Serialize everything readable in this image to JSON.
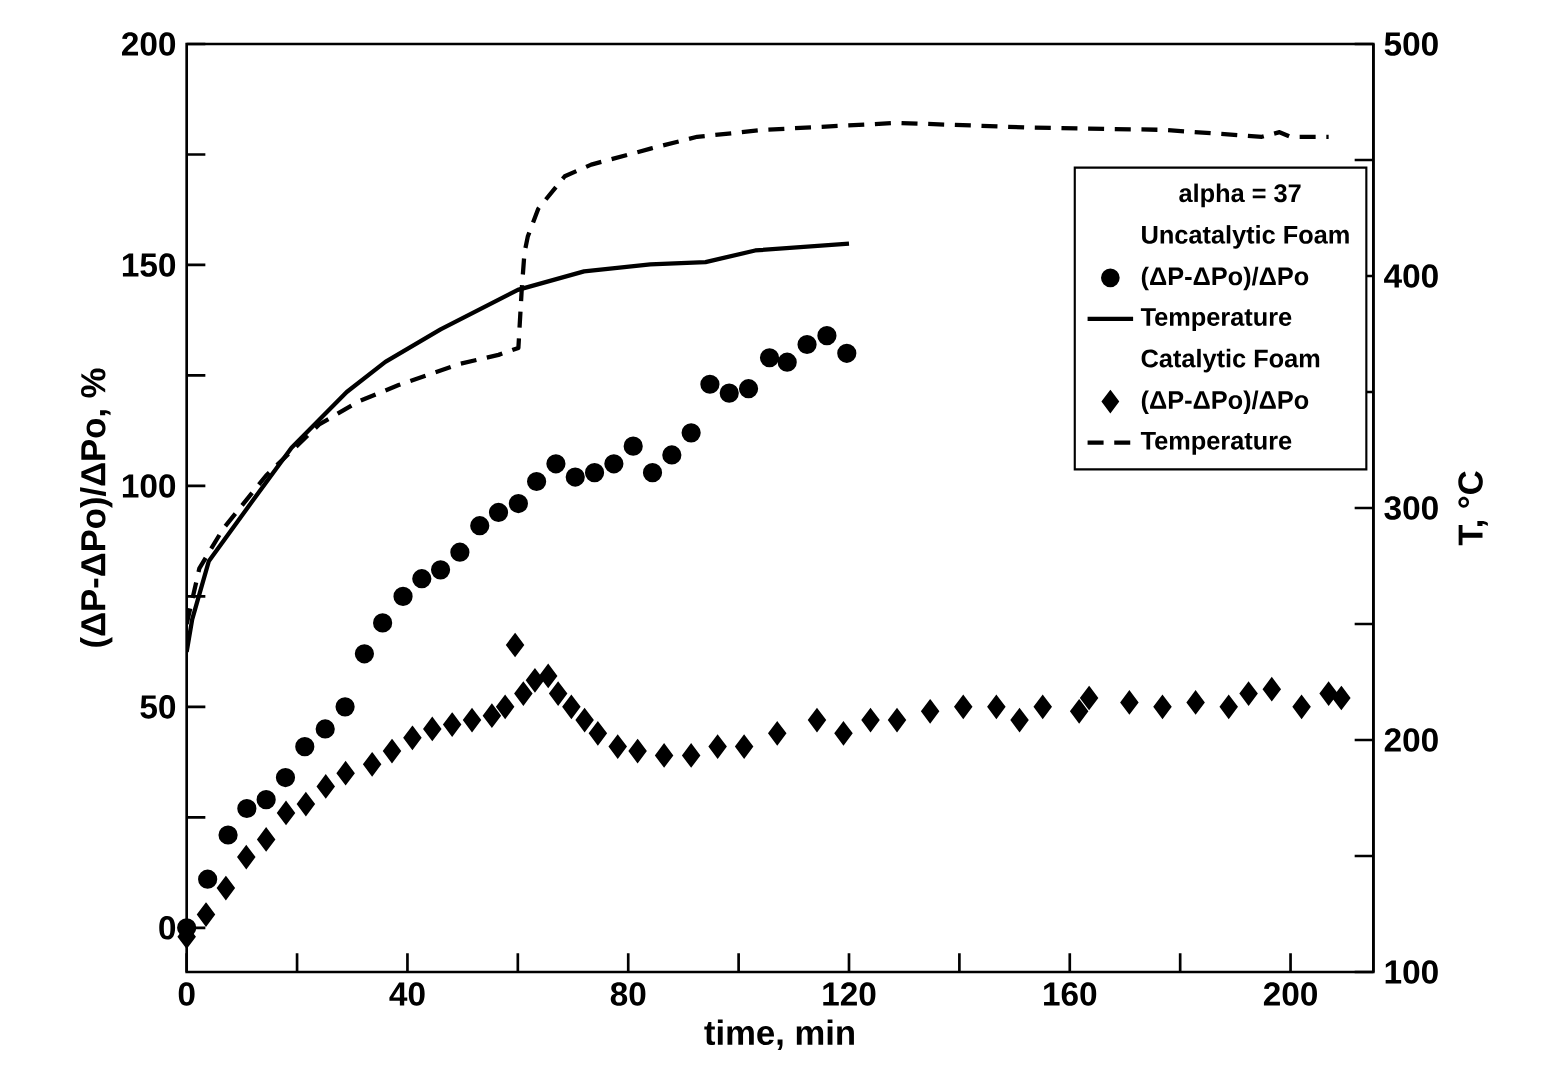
{
  "chart_data": {
    "type": "scatter",
    "xlabel": "time, min",
    "ylabel": "(ΔP-ΔPo)/ΔPo, %",
    "y2label": "T, °C",
    "legend_title": "alpha = 37",
    "annotations": [
      "Uncatalytic Foam",
      "Catalytic Foam"
    ],
    "legend": "top right",
    "xlim": [
      0,
      215
    ],
    "ylim": [
      -10,
      200
    ],
    "y2lim": [
      100,
      500
    ],
    "xticks": [
      0,
      {
        "value": 20,
        "label": null
      },
      40,
      {
        "value": 60,
        "label": null
      },
      80,
      {
        "value": 100,
        "label": null
      },
      120,
      {
        "value": 140,
        "label": null
      },
      160,
      {
        "value": 180,
        "label": null
      },
      200
    ],
    "yticks": [
      0,
      {
        "value": 25,
        "label": null
      },
      50,
      {
        "value": 75,
        "label": null
      },
      100,
      {
        "value": 125,
        "label": null
      },
      150,
      {
        "value": 175,
        "label": null
      },
      200
    ],
    "y2ticks": [
      100,
      {
        "value": 150,
        "label": null
      },
      200,
      {
        "value": 250,
        "label": null
      },
      300,
      {
        "value": 350,
        "label": null
      },
      400,
      {
        "value": 450,
        "label": null
      },
      500
    ],
    "series": [
      {
        "name": "(ΔP-ΔPo)/ΔPo",
        "marker": "circle",
        "color": "#000000",
        "x": [
          0,
          3.8,
          7.5,
          10.9,
          14.4,
          17.9,
          21.4,
          25.1,
          28.7,
          32.2,
          35.5,
          39.2,
          42.6,
          46,
          49.5,
          53.1,
          56.5,
          60.1,
          63.4,
          66.9,
          70.4,
          73.9,
          77.4,
          80.9,
          84.4,
          87.9,
          91.4,
          94.8,
          98.3,
          101.8,
          105.6,
          108.8,
          112.4,
          116,
          119.6
        ],
        "values": [
          0,
          11,
          21,
          27,
          29,
          34,
          41,
          45,
          50,
          62,
          69,
          75,
          79,
          81,
          85,
          91,
          94,
          96,
          101,
          105,
          102,
          103,
          105,
          109,
          103,
          107,
          112,
          123,
          121,
          122,
          129,
          128,
          132,
          134,
          130
        ]
      },
      {
        "name": "Temperature",
        "type": "line",
        "axis": "y2",
        "marker": "none",
        "line_style": "solid",
        "color": "#000000",
        "x": [
          0,
          1,
          4,
          11,
          19,
          29,
          36,
          46,
          60,
          72,
          84,
          94,
          103,
          120
        ],
        "values": [
          238,
          252,
          277,
          300,
          326,
          350,
          363,
          377,
          394,
          402,
          405,
          406,
          411,
          414
        ]
      },
      {
        "name": "(ΔP-ΔPo)/ΔPo",
        "marker": "diamond",
        "color": "#000000",
        "x": [
          0,
          3.5,
          7.1,
          10.8,
          14.4,
          18,
          21.6,
          25.2,
          28.8,
          33.6,
          37.2,
          40.9,
          44.5,
          48.1,
          51.7,
          55.3,
          57.7,
          59.5,
          61,
          63.1,
          65.5,
          67.3,
          69.7,
          72.1,
          74.5,
          78.1,
          81.7,
          86.5,
          91.4,
          96.2,
          101,
          107,
          114.2,
          119,
          123.9,
          128.7,
          134.7,
          140.7,
          146.7,
          150.9,
          155.1,
          161.7,
          163.5,
          170.8,
          176.8,
          182.8,
          188.8,
          192.4,
          196.6,
          202,
          206.9,
          209.2
        ],
        "values": [
          -2,
          3,
          9,
          16,
          20,
          26,
          28,
          32,
          35,
          37,
          40,
          43,
          45,
          46,
          47,
          48,
          50,
          64,
          53,
          56,
          57,
          53,
          50,
          47,
          44,
          41,
          40,
          39,
          39,
          41,
          41,
          44,
          47,
          44,
          47,
          47,
          49,
          50,
          50,
          47,
          50,
          49,
          52,
          51,
          50,
          51,
          50,
          53,
          54,
          50,
          53,
          52
        ]
      },
      {
        "name": "Temperature",
        "type": "line",
        "axis": "y2",
        "marker": "none",
        "line_style": "dashed",
        "color": "#000000",
        "x": [
          0,
          2.3,
          6.6,
          14.4,
          24,
          31.2,
          38.4,
          49.3,
          56.5,
          60.1,
          60.7,
          61.2,
          61.8,
          63.7,
          68.5,
          73.3,
          84.2,
          92.5,
          104.6,
          128.7,
          152.7,
          176.8,
          194.8,
          198,
          200,
          206.9
        ],
        "values": [
          250,
          274,
          291,
          314,
          336,
          346,
          353,
          362,
          366,
          369,
          394,
          410,
          417,
          429,
          443,
          448,
          455,
          460,
          463,
          466,
          464,
          463,
          460,
          462,
          460,
          460
        ]
      }
    ]
  }
}
